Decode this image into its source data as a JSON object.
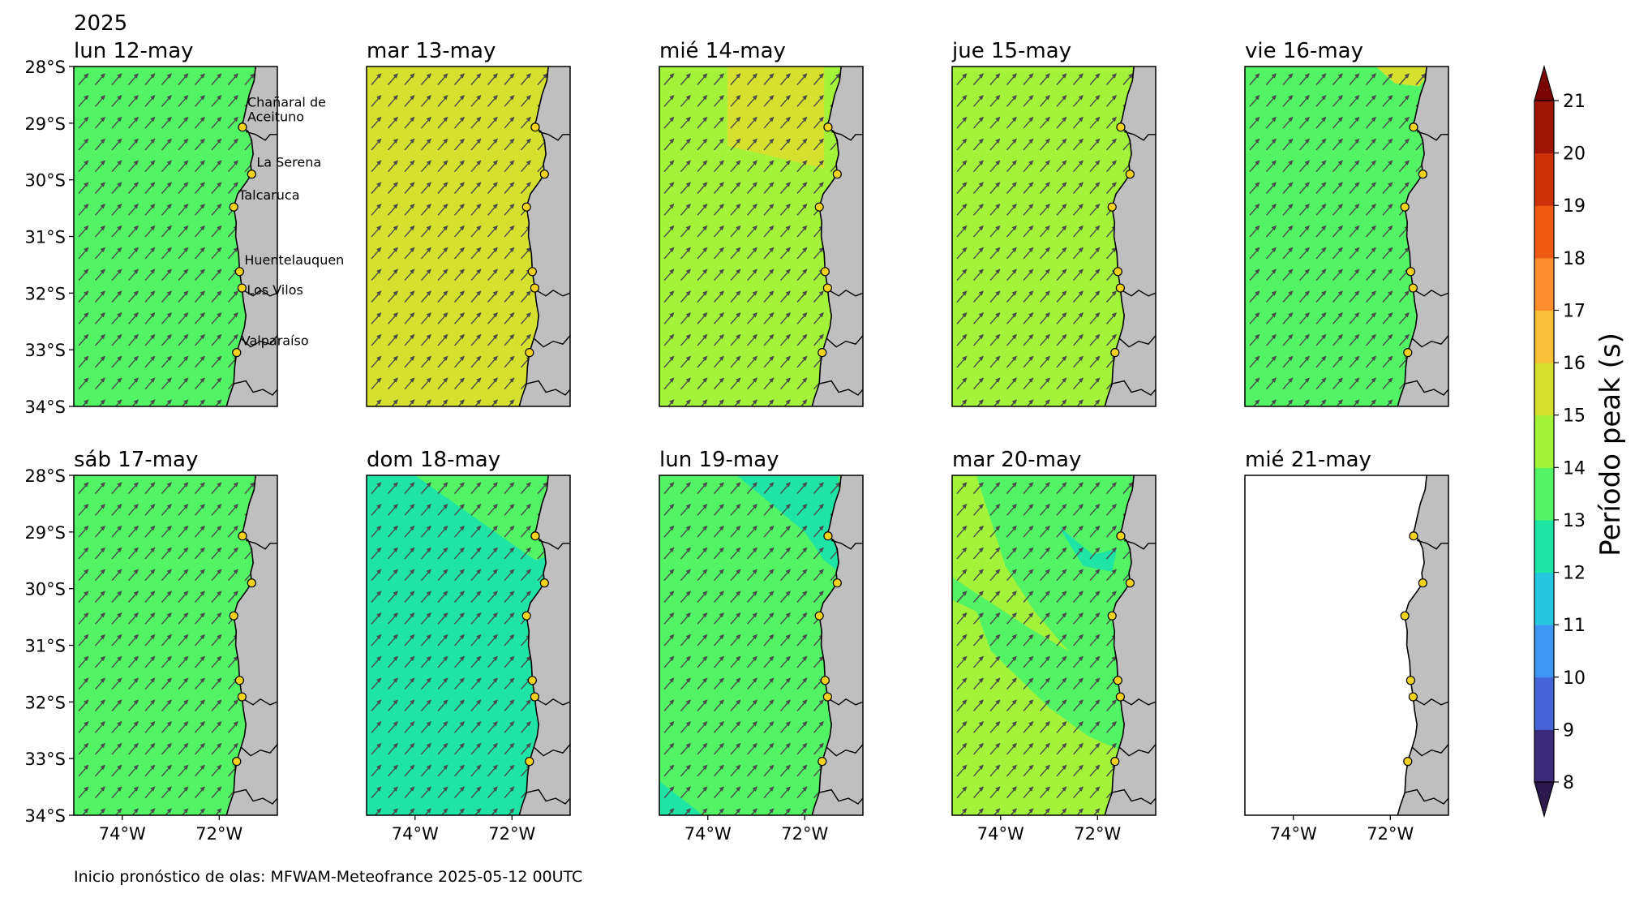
{
  "figure": {
    "year_label": "2025",
    "footer": "Inicio pronóstico de olas: MFWAM-Meteofrance 2025-05-12 00UTC"
  },
  "map_extent": {
    "lon_min": -75,
    "lon_max": -70.8,
    "lat_min": -34,
    "lat_max": -28
  },
  "lat_ticks": [
    {
      "value": -28,
      "label": "28°S"
    },
    {
      "value": -29,
      "label": "29°S"
    },
    {
      "value": -30,
      "label": "30°S"
    },
    {
      "value": -31,
      "label": "31°S"
    },
    {
      "value": -32,
      "label": "32°S"
    },
    {
      "value": -33,
      "label": "33°S"
    },
    {
      "value": -34,
      "label": "34°S"
    }
  ],
  "lon_ticks": [
    {
      "value": -74,
      "label": "74°W"
    },
    {
      "value": -72,
      "label": "72°W"
    }
  ],
  "stations": [
    {
      "name": "Chañaral de\nAceituno",
      "lon": -71.52,
      "lat": -29.07
    },
    {
      "name": "La Serena",
      "lon": -71.33,
      "lat": -29.9
    },
    {
      "name": "Talcaruca",
      "lon": -71.7,
      "lat": -30.48
    },
    {
      "name": "Huentelauquen",
      "lon": -71.58,
      "lat": -31.62
    },
    {
      "name": "Los Vilos",
      "lon": -71.53,
      "lat": -31.91
    },
    {
      "name": "Valparaíso",
      "lon": -71.64,
      "lat": -33.05
    }
  ],
  "panels": [
    {
      "title": "lun 12-may",
      "period_s": 13.5,
      "show_labels": true,
      "show_y": true,
      "show_x": false,
      "arrows": true,
      "patches": []
    },
    {
      "title": "mar 13-may",
      "period_s": 15.5,
      "show_labels": false,
      "show_y": false,
      "show_x": false,
      "arrows": true,
      "patches": []
    },
    {
      "title": "mié 14-may",
      "period_s": 14.5,
      "show_labels": false,
      "show_y": false,
      "show_x": false,
      "arrows": true,
      "patches": [
        {
          "period_s": 15.5,
          "poly": [
            [
              -73.6,
              -28
            ],
            [
              -71.6,
              -28
            ],
            [
              -71.6,
              -29.8
            ],
            [
              -72.6,
              -29.6
            ],
            [
              -73.6,
              -29.4
            ]
          ]
        }
      ]
    },
    {
      "title": "jue 15-may",
      "period_s": 14.5,
      "show_labels": false,
      "show_y": false,
      "show_x": false,
      "arrows": true,
      "patches": []
    },
    {
      "title": "vie 16-may",
      "period_s": 13.5,
      "show_labels": false,
      "show_y": false,
      "show_x": false,
      "arrows": true,
      "patches": [
        {
          "period_s": 15.5,
          "poly": [
            [
              -72.3,
              -28
            ],
            [
              -71.1,
              -28
            ],
            [
              -71.4,
              -28.35
            ],
            [
              -71.9,
              -28.3
            ]
          ]
        }
      ]
    },
    {
      "title": "sáb 17-may",
      "period_s": 13.5,
      "show_labels": false,
      "show_y": true,
      "show_x": true,
      "arrows": true,
      "patches": []
    },
    {
      "title": "dom 18-may",
      "period_s": 12.5,
      "show_labels": false,
      "show_y": false,
      "show_x": true,
      "arrows": true,
      "patches": [
        {
          "period_s": 13.5,
          "poly": [
            [
              -74.0,
              -28
            ],
            [
              -71.2,
              -28
            ],
            [
              -71.2,
              -29.4
            ],
            [
              -71.5,
              -29.5
            ],
            [
              -71.6,
              -29.45
            ]
          ]
        }
      ]
    },
    {
      "title": "lun 19-may",
      "period_s": 13.5,
      "show_labels": false,
      "show_y": false,
      "show_x": true,
      "arrows": true,
      "patches": [
        {
          "period_s": 12.5,
          "poly": [
            [
              -73.4,
              -28
            ],
            [
              -71.3,
              -28
            ],
            [
              -71.3,
              -29.7
            ],
            [
              -71.6,
              -29.5
            ],
            [
              -72.0,
              -29.0
            ]
          ]
        },
        {
          "period_s": 12.5,
          "poly": [
            [
              -75,
              -33.4
            ],
            [
              -75,
              -34
            ],
            [
              -74.1,
              -34
            ]
          ]
        }
      ]
    },
    {
      "title": "mar 20-may",
      "period_s": 13.5,
      "show_labels": false,
      "show_y": false,
      "show_x": true,
      "arrows": true,
      "patches": [
        {
          "period_s": 14.5,
          "poly": [
            [
              -75,
              -28
            ],
            [
              -74.5,
              -28
            ],
            [
              -73.9,
              -29.6
            ],
            [
              -73.3,
              -30.4
            ],
            [
              -72.6,
              -31.1
            ],
            [
              -73.4,
              -30.7
            ],
            [
              -75,
              -29.8
            ]
          ]
        },
        {
          "period_s": 14.5,
          "poly": [
            [
              -75,
              -30.2
            ],
            [
              -74.5,
              -30.4
            ],
            [
              -74.2,
              -31.1
            ],
            [
              -73.0,
              -32.1
            ],
            [
              -72.2,
              -32.6
            ],
            [
              -71.4,
              -32.9
            ],
            [
              -71.5,
              -34
            ],
            [
              -75,
              -34
            ]
          ]
        },
        {
          "period_s": 12.5,
          "poly": [
            [
              -72.8,
              -28.9
            ],
            [
              -72.1,
              -29.4
            ],
            [
              -71.6,
              -29.3
            ],
            [
              -71.7,
              -29.7
            ],
            [
              -72.3,
              -29.6
            ]
          ]
        }
      ]
    },
    {
      "title": "mié 21-may",
      "period_s": null,
      "show_labels": false,
      "show_y": false,
      "show_x": true,
      "arrows": false,
      "patches": []
    }
  ],
  "colorbar": {
    "label": "Período peak (s)",
    "bounds": [
      8,
      9,
      10,
      11,
      12,
      13,
      14,
      15,
      16,
      17,
      18,
      19,
      20,
      21
    ],
    "colors": [
      "#3a2a78",
      "#4464d8",
      "#3d97f2",
      "#25c6e0",
      "#20e3a6",
      "#52f364",
      "#a2f33a",
      "#d5e12e",
      "#f7c03a",
      "#fc8e2e",
      "#ef5b13",
      "#cc3207",
      "#9d1402"
    ],
    "under_color": "#2c1a4e",
    "over_color": "#7a0403",
    "tick_labels": [
      "8",
      "9",
      "10",
      "11",
      "12",
      "13",
      "14",
      "15",
      "16",
      "17",
      "18",
      "19",
      "20",
      "21"
    ]
  },
  "colors": {
    "land": "#bfbfbf",
    "coast": "#000000",
    "station_fill": "#f2d21b",
    "arrow": "#4a4a4a"
  }
}
